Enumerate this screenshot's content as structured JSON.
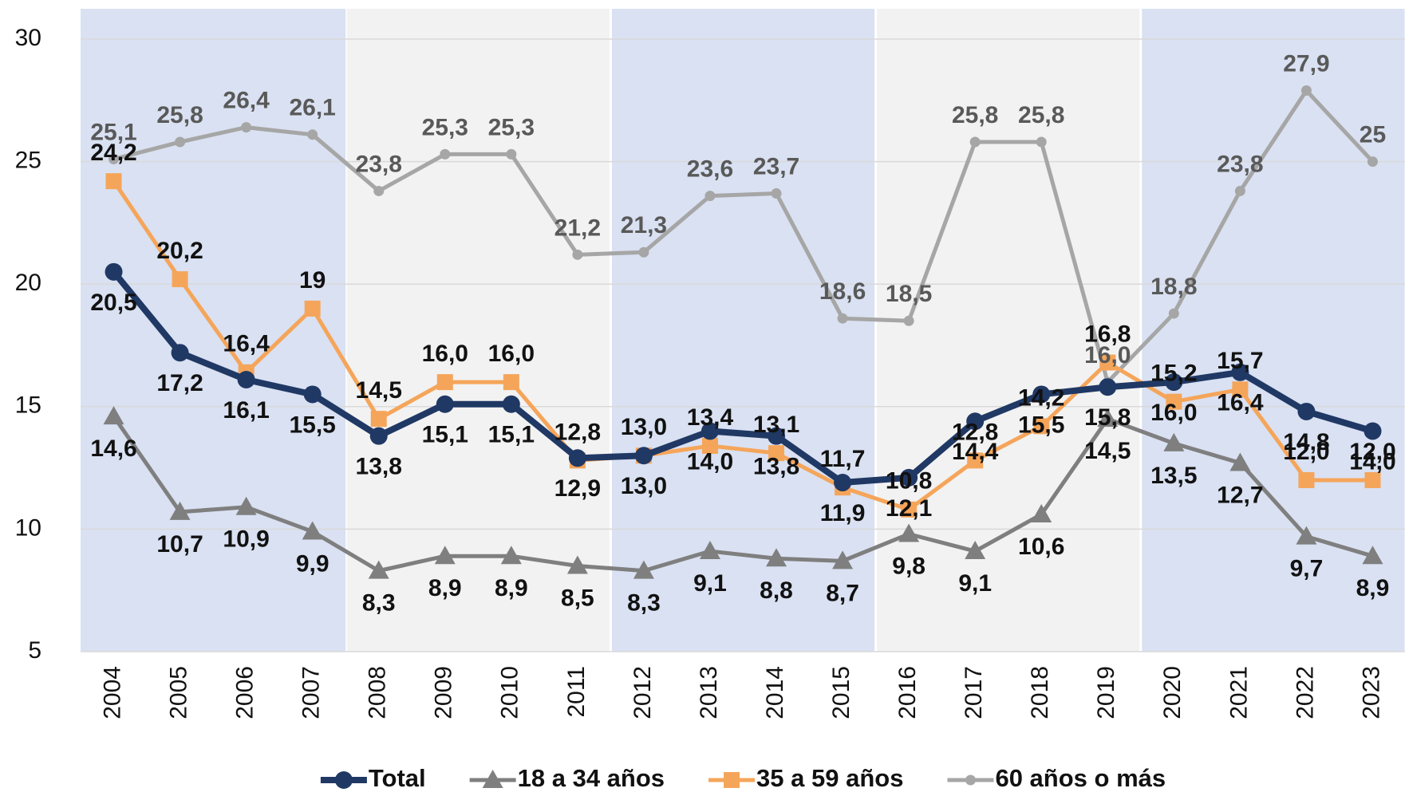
{
  "chart_data": {
    "type": "line",
    "categories": [
      "2004",
      "2005",
      "2006",
      "2007",
      "2008",
      "2009",
      "2010",
      "2011",
      "2012",
      "2013",
      "2014",
      "2015",
      "2016",
      "2017",
      "2018",
      "2019",
      "2020",
      "2021",
      "2022",
      "2023"
    ],
    "ylim": [
      5,
      30
    ],
    "yticks": [
      5,
      10,
      15,
      20,
      25,
      30
    ],
    "grid": true,
    "series": [
      {
        "name": "Total",
        "color": "#203864",
        "marker": "circle",
        "values": [
          20.5,
          17.2,
          16.1,
          15.5,
          13.8,
          15.1,
          15.1,
          12.9,
          13.0,
          14.0,
          13.8,
          11.9,
          12.1,
          14.4,
          15.5,
          15.8,
          16.0,
          16.4,
          14.8,
          14.0
        ],
        "value_labels": [
          "20,5",
          "17,2",
          "16,1",
          "15,5",
          "13,8",
          "15,1",
          "15,1",
          "12,9",
          "13,0",
          "14,0",
          "13,8",
          "11,9",
          "12,1",
          "14,4",
          "15,5",
          "15,8",
          "16,0",
          "16,4",
          "14,8",
          "14,0"
        ]
      },
      {
        "name": "18 a 34 años",
        "color": "#7f7f7f",
        "marker": "triangle",
        "values": [
          14.6,
          10.7,
          10.9,
          9.9,
          8.3,
          8.9,
          8.9,
          8.5,
          8.3,
          9.1,
          8.8,
          8.7,
          9.8,
          9.1,
          10.6,
          14.5,
          13.5,
          12.7,
          9.7,
          8.9
        ],
        "value_labels": [
          "14,6",
          "10,7",
          "10,9",
          "9,9",
          "8,3",
          "8,9",
          "8,9",
          "8,5",
          "8,3",
          "9,1",
          "8,8",
          "8,7",
          "9,8",
          "9,1",
          "10,6",
          "14,5",
          "13,5",
          "12,7",
          "9,7",
          "8,9"
        ]
      },
      {
        "name": "35 a 59 años",
        "color": "#f5a55a",
        "marker": "square",
        "values": [
          24.2,
          20.2,
          16.4,
          19,
          14.5,
          16.0,
          16.0,
          12.8,
          13.0,
          13.4,
          13.1,
          11.7,
          10.8,
          12.8,
          14.2,
          16.8,
          15.2,
          15.7,
          12.0,
          12.0
        ],
        "value_labels": [
          "24,2",
          "20,2",
          "16,4",
          "19",
          "14,5",
          "16,0",
          "16,0",
          "12,8",
          "13,0",
          "13,4",
          "13,1",
          "11,7",
          "10,8",
          "12,8",
          "14,2",
          "16,8",
          "15,2",
          "15,7",
          "12,0",
          "12,0"
        ]
      },
      {
        "name": "60 años o más",
        "color": "#a6a6a6",
        "marker": "dot",
        "values": [
          25.1,
          25.8,
          26.4,
          26.1,
          23.8,
          25.3,
          25.3,
          21.2,
          21.3,
          23.6,
          23.7,
          18.6,
          18.5,
          25.8,
          25.8,
          16.0,
          18.8,
          23.8,
          27.9,
          25
        ],
        "value_labels": [
          "25,1",
          "25,8",
          "26,4",
          "26,1",
          "23,8",
          "25,3",
          "25,3",
          "21,2",
          "21,3",
          "23,6",
          "23,7",
          "18,6",
          "18,5",
          "25,8",
          "25,8",
          "16,0",
          "18,8",
          "23,8",
          "27,9",
          "25"
        ]
      }
    ]
  }
}
